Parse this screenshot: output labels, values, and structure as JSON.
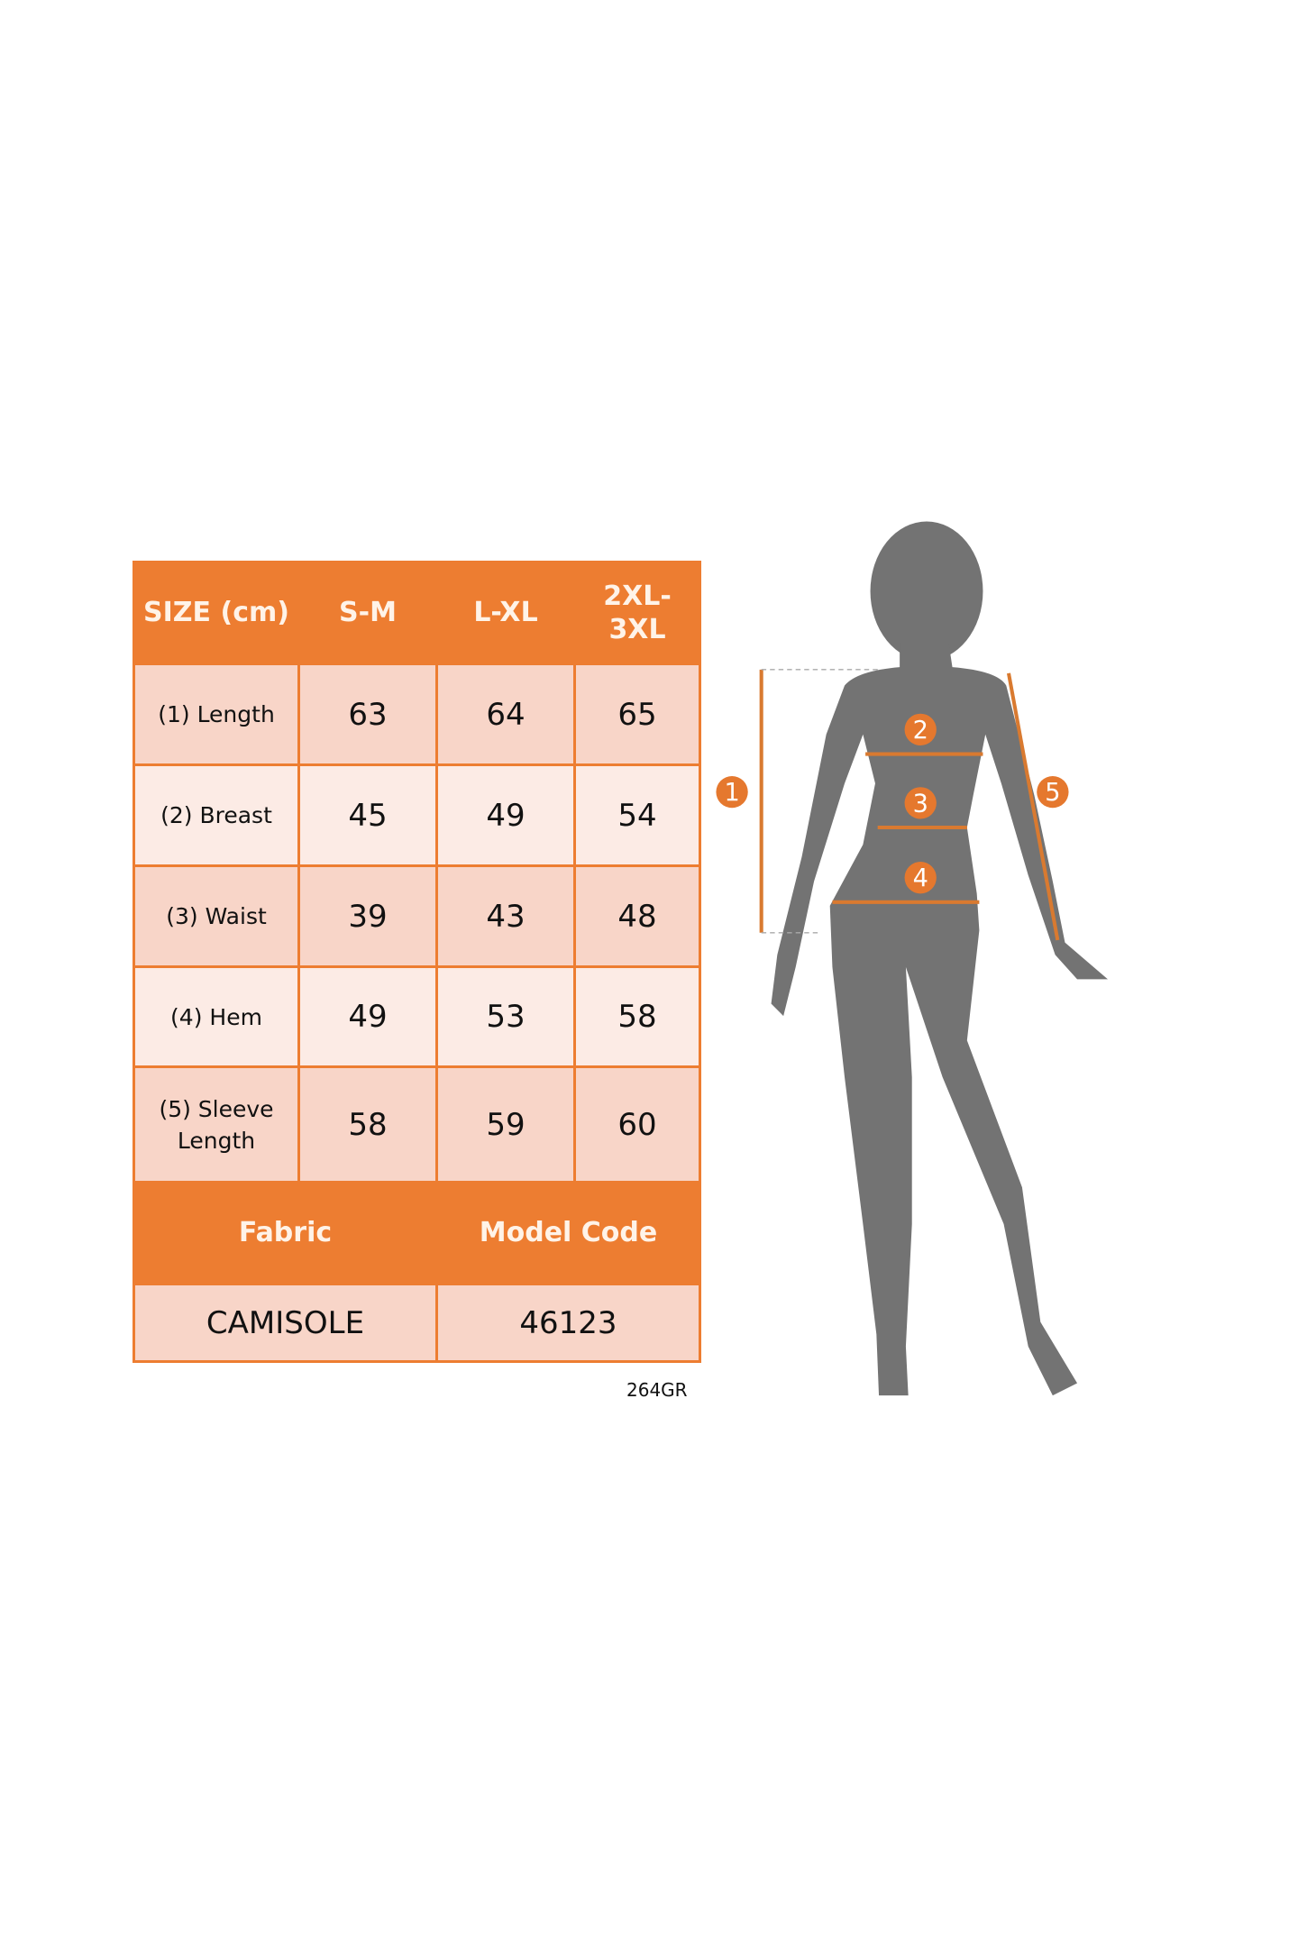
{
  "table": {
    "header": [
      "SIZE (cm)",
      "S-M",
      "L-XL",
      "2XL-3XL"
    ],
    "rows": [
      {
        "label": "(1) Length",
        "values": [
          "63",
          "64",
          "65"
        ]
      },
      {
        "label": "(2) Breast",
        "values": [
          "45",
          "49",
          "54"
        ]
      },
      {
        "label": "(3) Waist",
        "values": [
          "39",
          "43",
          "48"
        ]
      },
      {
        "label": "(4) Hem",
        "values": [
          "49",
          "53",
          "58"
        ]
      },
      {
        "label": "(5) Sleeve Length",
        "values": [
          "58",
          "59",
          "60"
        ]
      }
    ],
    "footer_headers": [
      "Fabric",
      "Model Code"
    ],
    "footer_values": [
      "CAMISOLE",
      "46123"
    ]
  },
  "code": "264GR",
  "figure": {
    "markers": [
      "1",
      "2",
      "3",
      "4",
      "5"
    ]
  },
  "colors": {
    "accent": "#ED7D31",
    "silhouette": "#737373"
  }
}
